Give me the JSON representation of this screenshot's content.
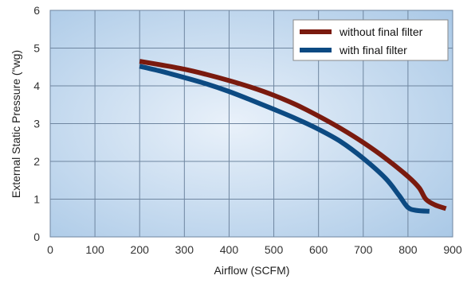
{
  "chart_data": {
    "type": "line",
    "title": "",
    "xlabel": "Airflow (SCFM)",
    "ylabel": "External Static Pressure (\"wg)",
    "xlim": [
      0,
      900
    ],
    "ylim": [
      0,
      6
    ],
    "x_ticks": [
      "0",
      "100",
      "200",
      "300",
      "400",
      "500",
      "600",
      "700",
      "800",
      "900"
    ],
    "y_ticks": [
      "0",
      "1",
      "2",
      "3",
      "4",
      "5",
      "6"
    ],
    "grid": true,
    "legend_position": "top-right",
    "series": [
      {
        "name": "without final filter",
        "color": "#7a1a0e",
        "points": [
          [
            200,
            4.65
          ],
          [
            250,
            4.55
          ],
          [
            300,
            4.44
          ],
          [
            350,
            4.3
          ],
          [
            400,
            4.14
          ],
          [
            450,
            3.96
          ],
          [
            500,
            3.75
          ],
          [
            550,
            3.5
          ],
          [
            600,
            3.2
          ],
          [
            650,
            2.87
          ],
          [
            700,
            2.5
          ],
          [
            750,
            2.08
          ],
          [
            800,
            1.6
          ],
          [
            825,
            1.3
          ],
          [
            840,
            1.0
          ],
          [
            860,
            0.85
          ],
          [
            885,
            0.75
          ]
        ]
      },
      {
        "name": "with final filter",
        "color": "#0c4a82",
        "points": [
          [
            200,
            4.52
          ],
          [
            250,
            4.38
          ],
          [
            300,
            4.22
          ],
          [
            350,
            4.05
          ],
          [
            400,
            3.85
          ],
          [
            450,
            3.62
          ],
          [
            500,
            3.38
          ],
          [
            550,
            3.13
          ],
          [
            600,
            2.85
          ],
          [
            650,
            2.52
          ],
          [
            700,
            2.08
          ],
          [
            750,
            1.55
          ],
          [
            780,
            1.1
          ],
          [
            800,
            0.78
          ],
          [
            820,
            0.7
          ],
          [
            848,
            0.68
          ]
        ]
      }
    ]
  }
}
